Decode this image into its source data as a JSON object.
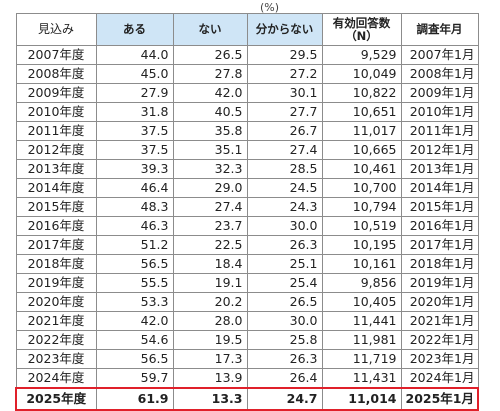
{
  "unit_label": "(%)",
  "headers": [
    "見込み",
    "ある",
    "ない",
    "分からない",
    "有効回答数\n（N）",
    "調査年月"
  ],
  "rows": [
    [
      "2007年度",
      "44.0",
      "26.5",
      "29.5",
      "9,529",
      "2007年1月"
    ],
    [
      "2008年度",
      "45.0",
      "27.8",
      "27.2",
      "10,049",
      "2008年1月"
    ],
    [
      "2009年度",
      "27.9",
      "42.0",
      "30.1",
      "10,822",
      "2009年1月"
    ],
    [
      "2010年度",
      "31.8",
      "40.5",
      "27.7",
      "10,651",
      "2010年1月"
    ],
    [
      "2011年度",
      "37.5",
      "35.8",
      "26.7",
      "11,017",
      "2011年1月"
    ],
    [
      "2012年度",
      "37.5",
      "35.1",
      "27.4",
      "10,665",
      "2012年1月"
    ],
    [
      "2013年度",
      "39.3",
      "32.3",
      "28.5",
      "10,461",
      "2013年1月"
    ],
    [
      "2014年度",
      "46.4",
      "29.0",
      "24.5",
      "10,700",
      "2014年1月"
    ],
    [
      "2015年度",
      "48.3",
      "27.4",
      "24.3",
      "10,794",
      "2015年1月"
    ],
    [
      "2016年度",
      "46.3",
      "23.7",
      "30.0",
      "10,519",
      "2016年1月"
    ],
    [
      "2017年度",
      "51.2",
      "22.5",
      "26.3",
      "10,195",
      "2017年1月"
    ],
    [
      "2018年度",
      "56.5",
      "18.4",
      "25.1",
      "10,161",
      "2018年1月"
    ],
    [
      "2019年度",
      "55.5",
      "19.1",
      "25.4",
      "9,856",
      "2019年1月"
    ],
    [
      "2020年度",
      "53.3",
      "20.2",
      "26.5",
      "10,405",
      "2020年1月"
    ],
    [
      "2021年度",
      "42.0",
      "28.0",
      "30.0",
      "11,441",
      "2021年1月"
    ],
    [
      "2022年度",
      "54.6",
      "19.5",
      "25.8",
      "11,981",
      "2022年1月"
    ],
    [
      "2023年度",
      "56.5",
      "17.3",
      "26.3",
      "11,719",
      "2023年1月"
    ],
    [
      "2024年度",
      "59.7",
      "13.9",
      "26.4",
      "11,431",
      "2024年1月"
    ]
  ],
  "highlight_row": [
    "2025年度",
    "61.9",
    "13.3",
    "24.7",
    "11,014",
    "2025年1月"
  ],
  "colors": {
    "header_fill": "#cfe5f6",
    "highlight_border": "#e0202a",
    "grid": "#8c8c8c"
  }
}
